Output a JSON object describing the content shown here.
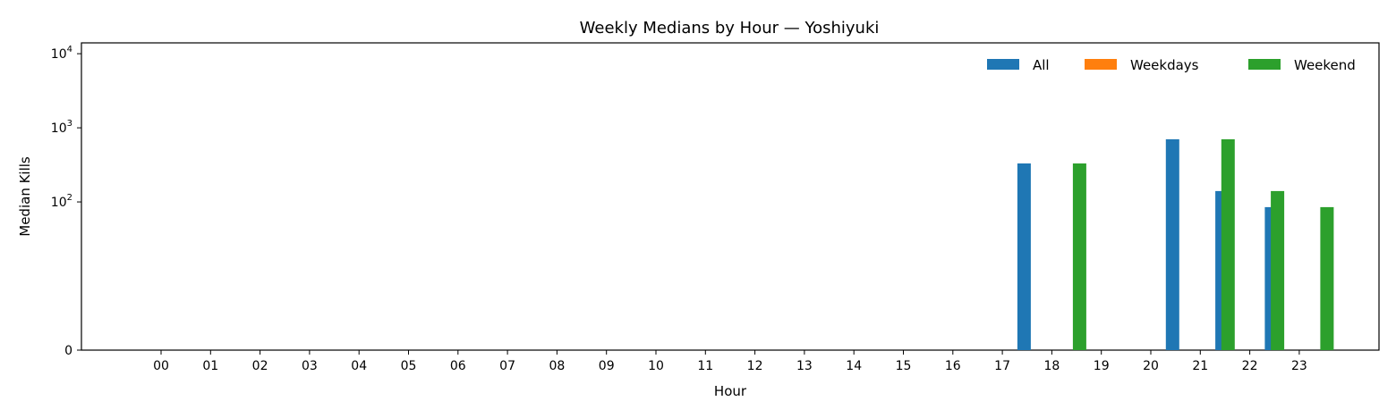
{
  "chart_data": {
    "type": "bar",
    "title": "Weekly Medians by Hour — Yoshiyuki",
    "xlabel": "Hour",
    "ylabel": "Median Kills",
    "yscale": "symlog",
    "linthresh": 10,
    "ylim": [
      0,
      14000
    ],
    "yticks": [
      {
        "value": 0,
        "label": "0"
      },
      {
        "value": 100,
        "label": "10",
        "exp": "2"
      },
      {
        "value": 1000,
        "label": "10",
        "exp": "3"
      },
      {
        "value": 10000,
        "label": "10",
        "exp": "4"
      }
    ],
    "grid": false,
    "legend_position": "top-right",
    "categories": [
      "00",
      "01",
      "02",
      "03",
      "04",
      "05",
      "06",
      "07",
      "08",
      "09",
      "10",
      "11",
      "12",
      "13",
      "14",
      "15",
      "16",
      "17",
      "18",
      "19",
      "20",
      "21",
      "22",
      "23"
    ],
    "series": [
      {
        "name": "All",
        "color": "#1f77b4",
        "values": [
          0,
          0,
          0,
          0,
          0,
          0,
          0,
          0,
          0,
          0,
          0,
          0,
          0,
          0,
          0,
          0,
          0,
          0,
          330,
          0,
          0,
          700,
          140,
          85
        ]
      },
      {
        "name": "Weekdays",
        "color": "#ff7f0e",
        "values": [
          0,
          0,
          0,
          0,
          0,
          0,
          0,
          0,
          0,
          0,
          0,
          0,
          0,
          0,
          0,
          0,
          0,
          0,
          0,
          0,
          0,
          0,
          0,
          0
        ]
      },
      {
        "name": "Weekend",
        "color": "#2ca02c",
        "values": [
          0,
          0,
          0,
          0,
          0,
          0,
          0,
          0,
          0,
          0,
          0,
          0,
          0,
          0,
          0,
          0,
          0,
          0,
          330,
          0,
          0,
          700,
          140,
          85
        ]
      }
    ]
  }
}
